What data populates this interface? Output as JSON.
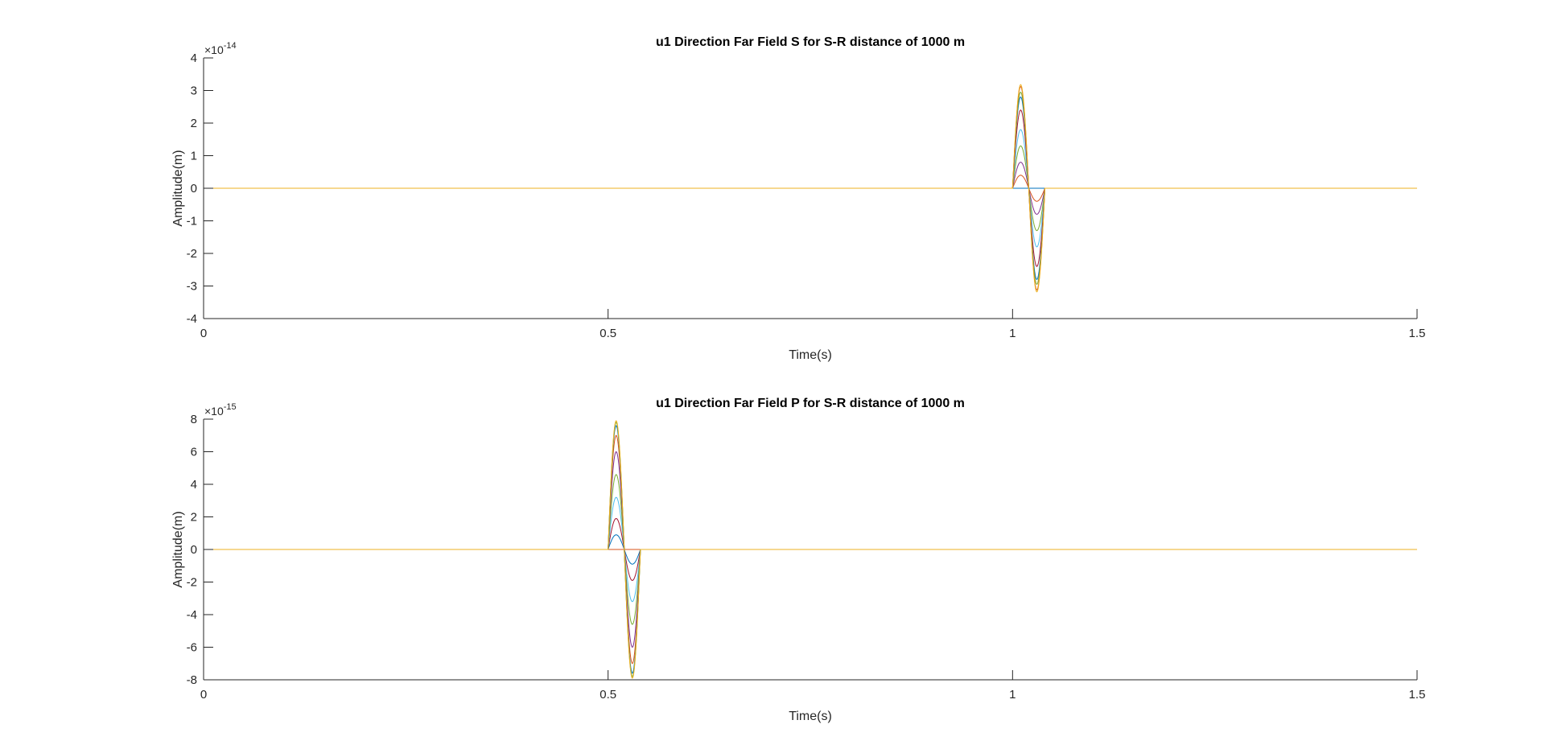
{
  "chart_data": [
    {
      "type": "line",
      "title": "u1 Direction Far Field S for S-R distance of 1000 m",
      "xlabel": "Time(s)",
      "ylabel": "Amplitude(m)",
      "xlim": [
        0,
        1.5
      ],
      "ylim": [
        -4,
        4
      ],
      "y_exponent_label": "×10",
      "y_exponent_power": "-14",
      "y_scale": 1e-14,
      "xticks": [
        "0",
        "0.5",
        "1",
        "1.5"
      ],
      "yticks": [
        "4",
        "3",
        "2",
        "1",
        "0",
        "-1",
        "-2",
        "-3",
        "-4"
      ],
      "xtick_values": [
        0,
        0.5,
        1,
        1.5
      ],
      "ytick_values": [
        4,
        3,
        2,
        1,
        0,
        -1,
        -2,
        -3,
        -4
      ],
      "grid": false,
      "legend": "none",
      "pulse": {
        "start": 1.0,
        "end": 1.04,
        "shape": "one-cycle sine"
      },
      "series": [
        {
          "color": "#0072BD",
          "peak_amplitude": 0.0
        },
        {
          "color": "#D95319",
          "peak_amplitude": 0.4
        },
        {
          "color": "#7E2F8E",
          "peak_amplitude": 0.8
        },
        {
          "color": "#77AC30",
          "peak_amplitude": 1.3
        },
        {
          "color": "#4DBEEE",
          "peak_amplitude": 1.8
        },
        {
          "color": "#A2142F",
          "peak_amplitude": 2.4
        },
        {
          "color": "#0072BD",
          "peak_amplitude": 2.8
        },
        {
          "color": "#77AC30",
          "peak_amplitude": 2.95
        },
        {
          "color": "#D95319",
          "peak_amplitude": 3.12
        },
        {
          "color": "#EDB120",
          "peak_amplitude": 3.18
        }
      ]
    },
    {
      "type": "line",
      "title": "u1 Direction Far Field P for S-R distance of 1000 m",
      "xlabel": "Time(s)",
      "ylabel": "Amplitude(m)",
      "xlim": [
        0,
        1.5
      ],
      "ylim": [
        -8,
        8
      ],
      "y_exponent_label": "×10",
      "y_exponent_power": "-15",
      "y_scale": 1e-15,
      "xticks": [
        "0",
        "0.5",
        "1",
        "1.5"
      ],
      "yticks": [
        "8",
        "6",
        "4",
        "2",
        "0",
        "-2",
        "-4",
        "-6",
        "-8"
      ],
      "xtick_values": [
        0,
        0.5,
        1,
        1.5
      ],
      "ytick_values": [
        8,
        6,
        4,
        2,
        0,
        -2,
        -4,
        -6,
        -8
      ],
      "grid": false,
      "legend": "none",
      "pulse": {
        "start": 0.5,
        "end": 0.54,
        "shape": "one-cycle sine"
      },
      "series": [
        {
          "color": "#D95319",
          "peak_amplitude": 0.0
        },
        {
          "color": "#0072BD",
          "peak_amplitude": 0.9
        },
        {
          "color": "#A2142F",
          "peak_amplitude": 1.9
        },
        {
          "color": "#4DBEEE",
          "peak_amplitude": 3.2
        },
        {
          "color": "#77AC30",
          "peak_amplitude": 4.6
        },
        {
          "color": "#7E2F8E",
          "peak_amplitude": 6.0
        },
        {
          "color": "#D95319",
          "peak_amplitude": 7.0
        },
        {
          "color": "#0072BD",
          "peak_amplitude": 7.6
        },
        {
          "color": "#77AC30",
          "peak_amplitude": 7.8
        },
        {
          "color": "#EDB120",
          "peak_amplitude": 7.9
        }
      ]
    }
  ]
}
